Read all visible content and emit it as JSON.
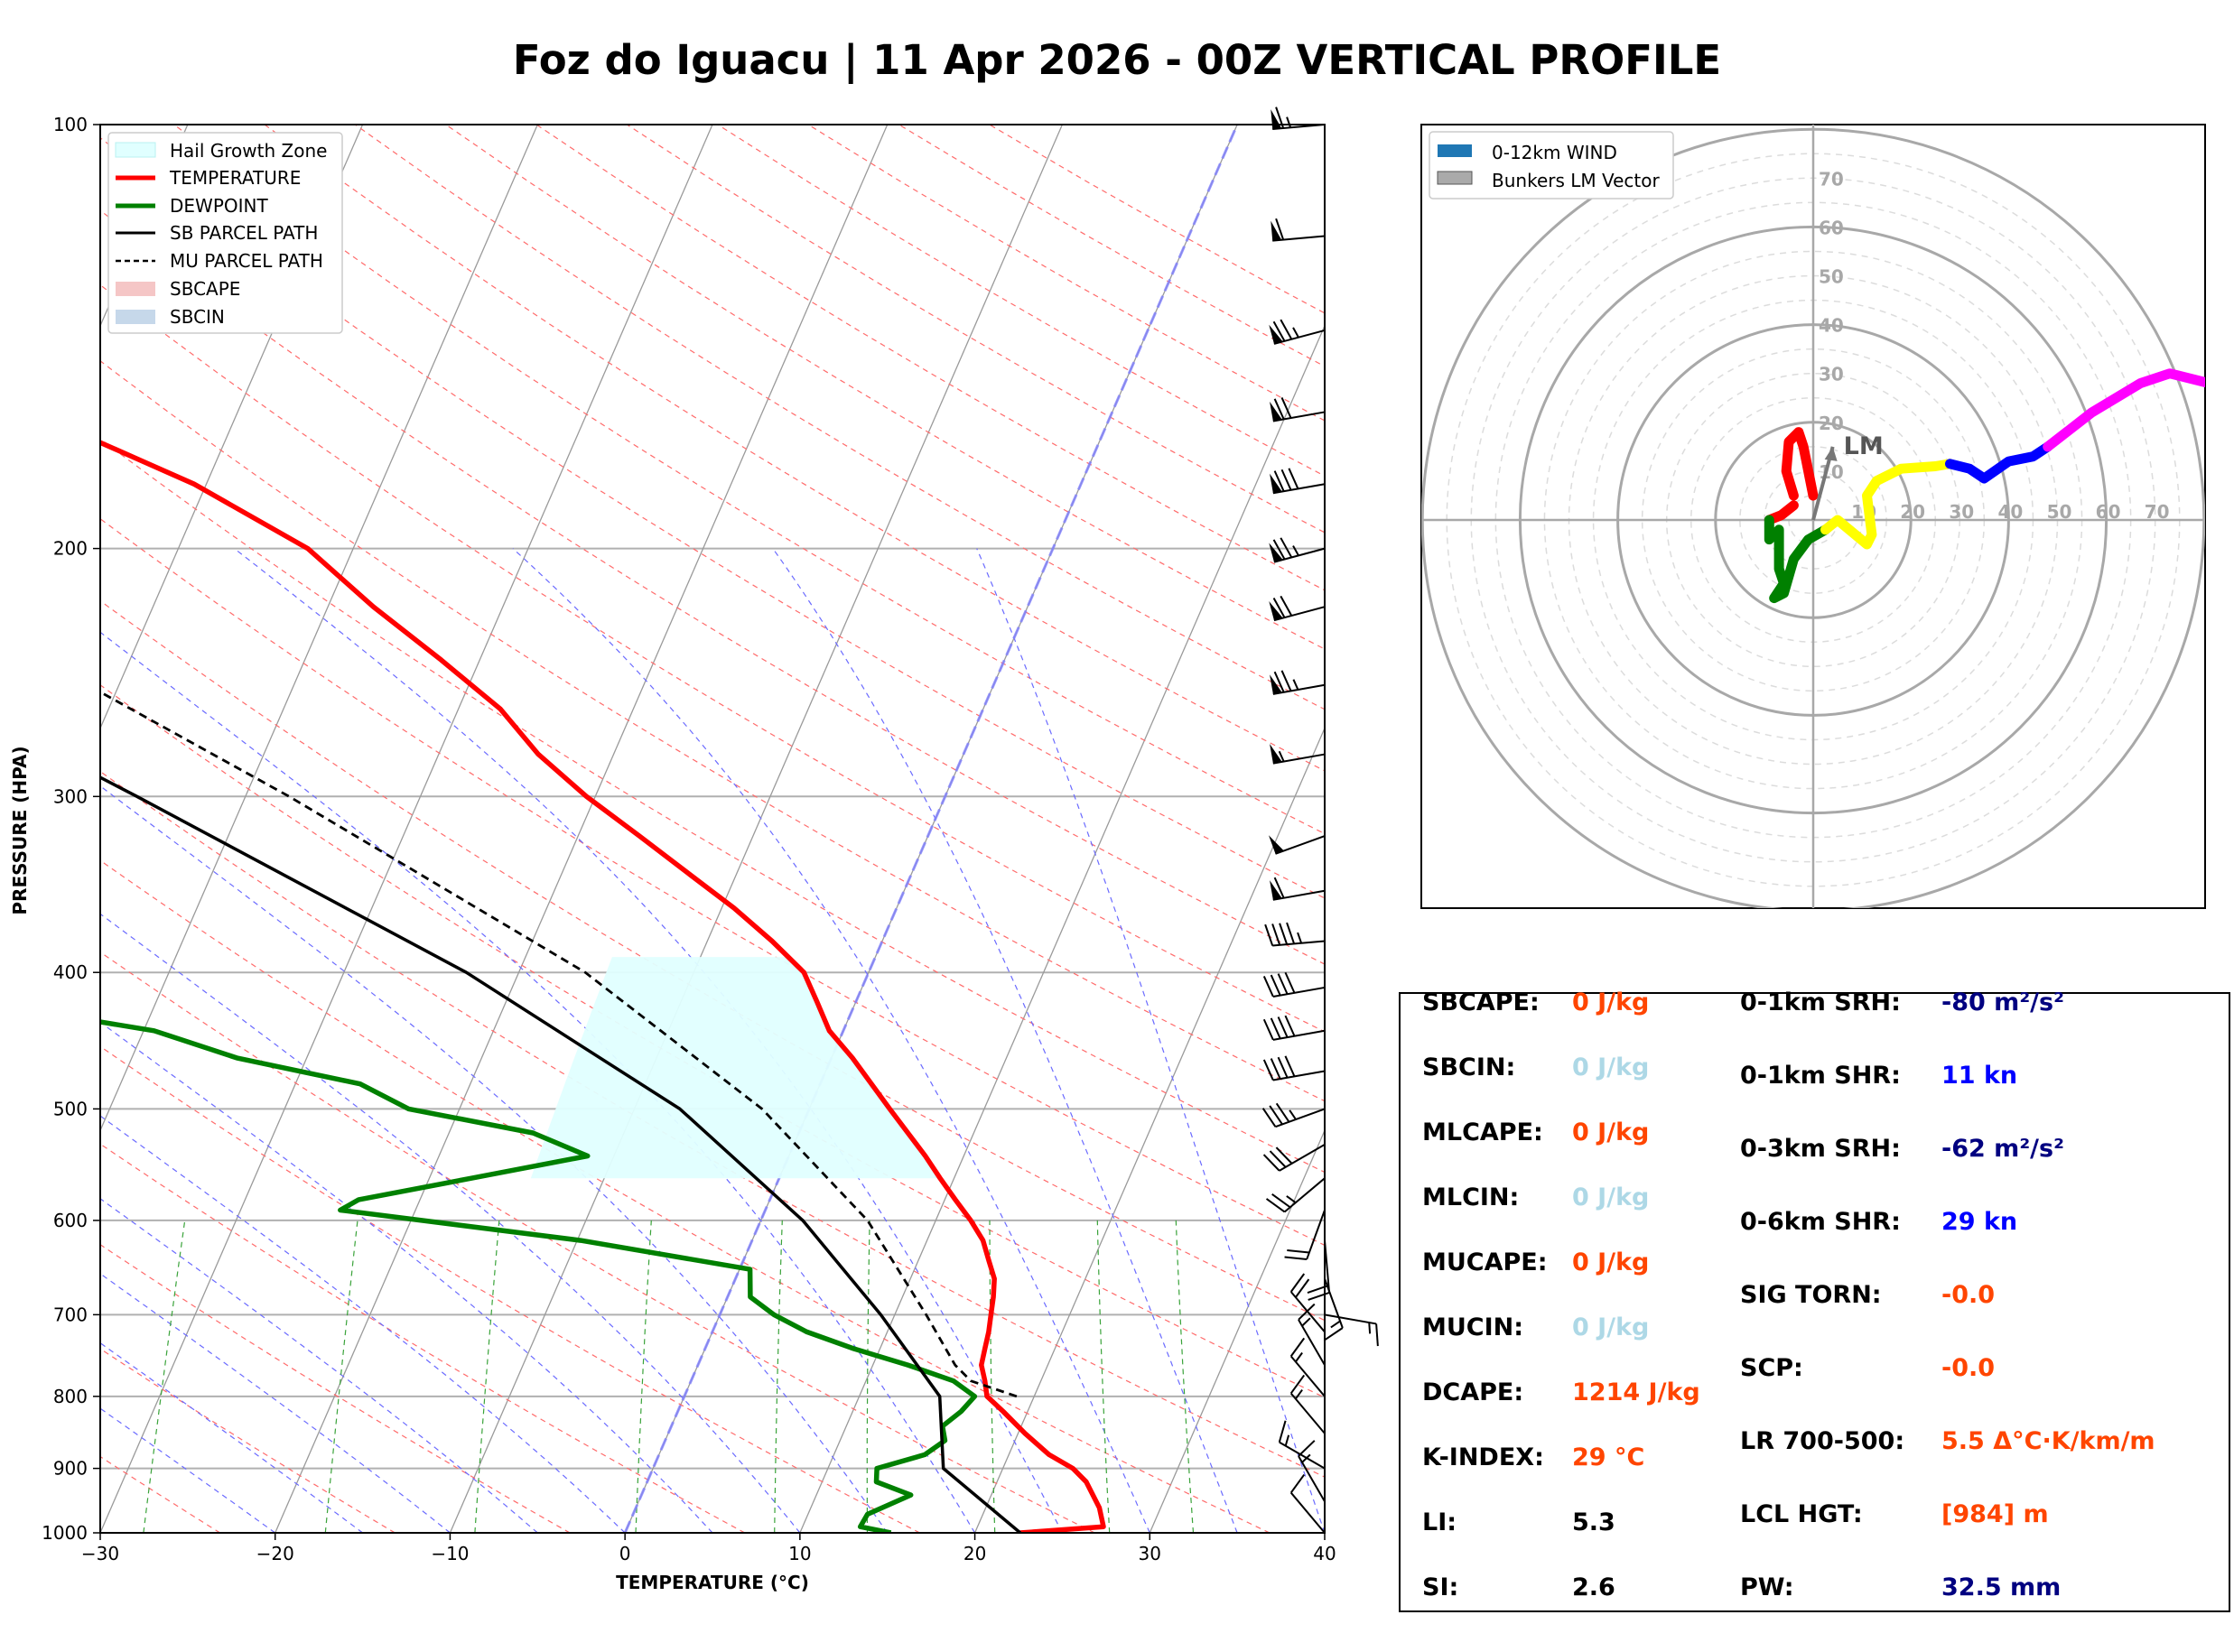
{
  "title": "Foz do Iguacu | 11 Apr 2026 - 00Z VERTICAL PROFILE",
  "skewt": {
    "ylabel": "PRESSURE (HPA)",
    "xlabel": "TEMPERATURE (°C)",
    "pressure_ticks": [
      "100",
      "200",
      "300",
      "400",
      "500",
      "600",
      "700",
      "800",
      "900",
      "1000"
    ],
    "temp_ticks": [
      "−30",
      "−20",
      "−10",
      "0",
      "10",
      "20",
      "30",
      "40"
    ],
    "legend": [
      "Hail Growth Zone",
      "TEMPERATURE",
      "DEWPOINT",
      "SB PARCEL PATH",
      "MU PARCEL PATH",
      "SBCAPE",
      "SBCIN"
    ]
  },
  "hodograph": {
    "legend": [
      "0-12km WIND",
      "Bunkers LM Vector"
    ],
    "ring_labels": [
      "10",
      "20",
      "30",
      "40",
      "50",
      "60",
      "70"
    ],
    "lm_label": "LM"
  },
  "stats": {
    "left": [
      {
        "label": "SBCAPE:",
        "value": "0 J/kg",
        "color": "#ff4500"
      },
      {
        "label": "SBCIN:",
        "value": "0 J/kg",
        "color": "#add8e6"
      },
      {
        "label": "MLCAPE:",
        "value": "0 J/kg",
        "color": "#ff4500"
      },
      {
        "label": "MLCIN:",
        "value": "0 J/kg",
        "color": "#add8e6"
      },
      {
        "label": "MUCAPE:",
        "value": "0 J/kg",
        "color": "#ff4500"
      },
      {
        "label": "MUCIN:",
        "value": "0 J/kg",
        "color": "#add8e6"
      },
      {
        "label": "DCAPE:",
        "value": "1214 J/kg",
        "color": "#ff4500"
      },
      {
        "label": "K-INDEX:",
        "value": "29 °C",
        "color": "#ff4500"
      },
      {
        "label": "LI:",
        "value": "5.3",
        "color": "#000000"
      },
      {
        "label": "SI:",
        "value": "2.6",
        "color": "#000000"
      }
    ],
    "right": [
      {
        "label": "0-1km SRH:",
        "value": "-80 m²/s²",
        "color": "#000080"
      },
      {
        "label": "0-1km SHR:",
        "value": "11 kn",
        "color": "#0000ff"
      },
      {
        "label": "0-3km SRH:",
        "value": "-62 m²/s²",
        "color": "#000080"
      },
      {
        "label": "0-6km SHR:",
        "value": "29 kn",
        "color": "#0000ff"
      },
      {
        "label": "SIG TORN:",
        "value": "-0.0",
        "color": "#ff4500"
      },
      {
        "label": "SCP:",
        "value": "-0.0",
        "color": "#ff4500"
      },
      {
        "label": "LR 700-500:",
        "value": "5.5 Δ°C·K/km/m",
        "color": "#ff4500"
      },
      {
        "label": "LCL HGT:",
        "value": "[984] m",
        "color": "#ff4500"
      },
      {
        "label": "PW:",
        "value": "32.5 mm",
        "color": "#000080"
      }
    ]
  },
  "chart_data": [
    {
      "type": "line",
      "name": "skew-T log-P",
      "xlabel": "TEMPERATURE (°C)",
      "ylabel": "PRESSURE (HPA)",
      "xlim": [
        -30,
        40
      ],
      "ylim": [
        1000,
        100
      ],
      "skew": 35,
      "series": [
        {
          "name": "TEMPERATURE",
          "color": "#ff0000",
          "p": [
            1000,
            990,
            960,
            920,
            900,
            880,
            850,
            820,
            800,
            780,
            760,
            740,
            720,
            700,
            680,
            660,
            640,
            620,
            600,
            580,
            560,
            540,
            500,
            460,
            440,
            420,
            400,
            380,
            360,
            340,
            320,
            300,
            280,
            260,
            240,
            220,
            200,
            180,
            160,
            140,
            120,
            100
          ],
          "t": [
            22.6,
            27.2,
            26.5,
            25.1,
            24.0,
            22.3,
            20.4,
            18.6,
            17.3,
            16.8,
            16.2,
            16.0,
            15.8,
            15.5,
            15.2,
            14.8,
            14.0,
            13.2,
            12.0,
            10.6,
            9.2,
            7.8,
            4.6,
            1.2,
            -0.8,
            -2.2,
            -3.7,
            -6.3,
            -9.3,
            -12.8,
            -16.5,
            -20.5,
            -24.3,
            -27.6,
            -32.2,
            -37.4,
            -42.6,
            -50.7,
            -61.8,
            -71.4,
            -81.0,
            -88.5
          ]
        },
        {
          "name": "DEWPOINT",
          "color": "#008000",
          "p": [
            1000,
            990,
            970,
            940,
            920,
            900,
            880,
            860,
            840,
            820,
            800,
            780,
            760,
            740,
            720,
            700,
            680,
            650,
            620,
            590,
            580,
            560,
            540,
            520,
            500,
            480,
            460,
            440,
            420,
            400,
            380,
            360,
            340,
            320,
            300,
            280,
            260,
            240,
            220,
            200,
            180,
            160,
            140,
            120,
            100
          ],
          "t": [
            15.2,
            13.3,
            13.4,
            15.4,
            13.1,
            12.8,
            15.2,
            16.0,
            15.5,
            16.2,
            16.6,
            15.0,
            12.0,
            8.5,
            5.4,
            3.1,
            1.3,
            0.6,
            -9.8,
            -24.3,
            -23.5,
            -17.6,
            -11.5,
            -15.2,
            -22.9,
            -26.3,
            -34.0,
            -39.4,
            -50.0,
            -47.1,
            -50.0,
            -53.8,
            -56.4,
            -59.5,
            -63.9,
            -67.6,
            -71.3,
            -73.9,
            -75.1,
            -74.0,
            -78.8,
            -82.7,
            -93.3,
            -96.6,
            -104.0
          ]
        },
        {
          "name": "SB PARCEL PATH",
          "color": "#000000",
          "p": [
            1000,
            900,
            800,
            700,
            600,
            500,
            400,
            300,
            200,
            150,
            100
          ],
          "t": [
            22.6,
            16.6,
            14.6,
            9.2,
            2.4,
            -7.4,
            -23.0,
            -46.2,
            -79.7,
            -97.9,
            -113.3
          ]
        },
        {
          "name": "MU PARCEL PATH",
          "color": "#000000",
          "dash": true,
          "p": [
            800,
            780,
            760,
            700,
            600,
            500,
            400,
            300,
            200,
            150,
            100
          ],
          "t": [
            19.0,
            16.0,
            14.7,
            11.8,
            6.1,
            -2.7,
            -16.2,
            -37.5,
            -69.3,
            -88.2,
            -103.5
          ]
        }
      ],
      "hail_growth_zone": {
        "p_bottom": 560,
        "p_top": 390
      },
      "pressure_ticks": [
        100,
        200,
        300,
        400,
        500,
        600,
        700,
        800,
        900,
        1000
      ],
      "temp_ticks": [
        -30,
        -20,
        -10,
        0,
        10,
        20,
        30,
        40
      ],
      "wind_barbs": {
        "p": [
          100,
          120,
          140,
          160,
          180,
          200,
          220,
          250,
          280,
          320,
          350,
          380,
          410,
          440,
          470,
          500,
          530,
          560,
          590,
          620,
          660,
          700,
          720,
          760,
          800,
          850,
          900,
          950,
          1000
        ],
        "speed_kt": [
          65,
          60,
          75,
          70,
          80,
          75,
          70,
          75,
          55,
          50,
          60,
          45,
          40,
          40,
          40,
          35,
          30,
          25,
          20,
          20,
          15,
          15,
          20,
          15,
          15,
          15,
          15,
          15,
          10
        ],
        "dir_deg": [
          265,
          265,
          255,
          260,
          260,
          255,
          255,
          260,
          260,
          250,
          260,
          265,
          260,
          260,
          260,
          250,
          240,
          230,
          200,
          175,
          160,
          100,
          320,
          330,
          320,
          320,
          300,
          330,
          320
        ]
      }
    },
    {
      "type": "line",
      "name": "hodograph",
      "units": "kn",
      "rings": [
        10,
        20,
        30,
        40,
        50,
        60,
        70
      ],
      "segments": [
        {
          "color": "#ff0000",
          "u": [
            0.0,
            -1.0,
            -2.0,
            -3.0,
            -5.0,
            -5.5,
            -4.0
          ],
          "v": [
            5.0,
            10.0,
            15.0,
            18.0,
            16.0,
            10.0,
            5.0
          ]
        },
        {
          "color": "#ff0000",
          "u": [
            -4.0,
            -6.5,
            -9.0
          ],
          "v": [
            3.0,
            1.0,
            0.0
          ]
        },
        {
          "color": "#008000",
          "u": [
            -9.0,
            -9.0,
            -7.0,
            -7.0,
            -6.0,
            -8.0,
            -6.0,
            -4.0,
            -1.0,
            2.5
          ],
          "v": [
            0.0,
            -4.0,
            -2.0,
            -10.0,
            -13.0,
            -16.0,
            -15.0,
            -8.0,
            -4.0,
            -2.0
          ]
        },
        {
          "color": "#ffff00",
          "u": [
            2.5,
            5.0,
            11.0,
            12.0,
            11.0,
            13.0,
            18.0,
            25.0,
            28.0
          ],
          "v": [
            -2.0,
            0.0,
            -5.0,
            -3.0,
            5.0,
            8.0,
            10.5,
            11.0,
            11.5
          ]
        },
        {
          "color": "#0000ff",
          "u": [
            28.0,
            32.0,
            35.0,
            40.0,
            45.0,
            48.0
          ],
          "v": [
            11.5,
            10.5,
            8.5,
            12.0,
            13.0,
            15.0
          ]
        },
        {
          "color": "#ff00ff",
          "u": [
            48.0,
            57.0,
            67.0,
            73.0,
            81.0
          ],
          "v": [
            15.0,
            22.0,
            28.0,
            30.0,
            28.0
          ]
        }
      ],
      "bunkers_lm": {
        "u": 4.0,
        "v": 15.0
      }
    }
  ]
}
